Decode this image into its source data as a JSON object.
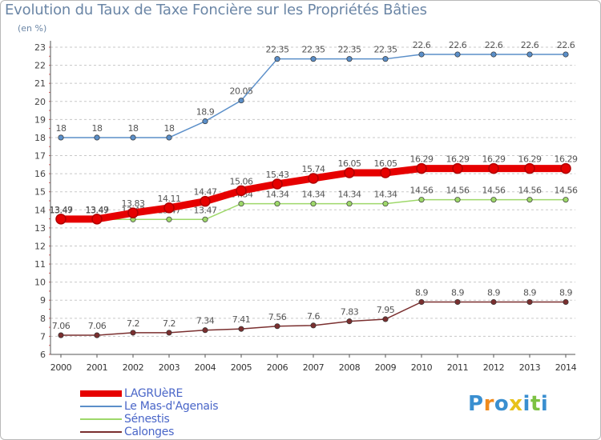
{
  "chart_data": {
    "type": "line",
    "title": "Evolution du Taux de Taxe Foncière sur les Propriétés Bâties",
    "ylabel": "(en %)",
    "xlabel": "",
    "x": [
      "2000",
      "2001",
      "2002",
      "2003",
      "2004",
      "2005",
      "2006",
      "2007",
      "2008",
      "2009",
      "2010",
      "2011",
      "2012",
      "2013",
      "2014"
    ],
    "ylim": [
      6,
      23
    ],
    "yticks": [
      6,
      7,
      8,
      9,
      10,
      11,
      12,
      13,
      14,
      15,
      16,
      17,
      18,
      19,
      20,
      21,
      22,
      23
    ],
    "grid": "horizontal dashed",
    "legend_position": "bottom-left",
    "series": [
      {
        "name": "LAGRUèRE",
        "color": "#e60000",
        "emphasis": true,
        "values": [
          13.49,
          13.49,
          13.83,
          14.11,
          14.47,
          15.06,
          15.43,
          15.74,
          16.05,
          16.05,
          16.29,
          16.29,
          16.29,
          16.29,
          16.29
        ],
        "labels": [
          "13.49",
          "13.49",
          "13.83",
          "14.11",
          "14.47",
          "15.06",
          "15.43",
          "15.74",
          "16.05",
          "16.05",
          "16.29",
          "16.29",
          "16.29",
          "16.29",
          "16.29"
        ]
      },
      {
        "name": "Le Mas-d'Agenais",
        "color": "#5b8fc9",
        "values": [
          18,
          18,
          18,
          18,
          18.9,
          20.05,
          22.35,
          22.35,
          22.35,
          22.35,
          22.6,
          22.6,
          22.6,
          22.6,
          22.6
        ],
        "labels": [
          "18",
          "18",
          "18",
          "18",
          "18.9",
          "20.05",
          "22.35",
          "22.35",
          "22.35",
          "22.35",
          "22.6",
          "22.6",
          "22.6",
          "22.6",
          "22.6"
        ]
      },
      {
        "name": "Sénestis",
        "color": "#9ed86a",
        "values": [
          13.47,
          13.47,
          13.47,
          13.47,
          13.47,
          14.34,
          14.34,
          14.34,
          14.34,
          14.34,
          14.56,
          14.56,
          14.56,
          14.56,
          14.56
        ],
        "labels": [
          "13.47",
          "13.47",
          "13.47",
          "13.47",
          "13.47",
          "14.34",
          "14.34",
          "14.34",
          "14.34",
          "14.34",
          "14.56",
          "14.56",
          "14.56",
          "14.56",
          "14.56"
        ]
      },
      {
        "name": "Calonges",
        "color": "#7a2f2f",
        "values": [
          7.06,
          7.06,
          7.2,
          7.2,
          7.34,
          7.41,
          7.56,
          7.6,
          7.83,
          7.95,
          8.9,
          8.9,
          8.9,
          8.9,
          8.9
        ],
        "labels": [
          "7.06",
          "7.06",
          "7.2",
          "7.2",
          "7.34",
          "7.41",
          "7.56",
          "7.6",
          "7.83",
          "7.95",
          "8.9",
          "8.9",
          "8.9",
          "8.9",
          "8.9"
        ]
      }
    ]
  },
  "logo": {
    "letters": [
      "P",
      "r",
      "o",
      "x",
      "i",
      "t",
      "i"
    ],
    "colors": [
      "#3a8fd0",
      "#f08a1c",
      "#3a8fd0",
      "#e8c21a",
      "#3a8fd0",
      "#7cc242",
      "#3a8fd0"
    ]
  }
}
